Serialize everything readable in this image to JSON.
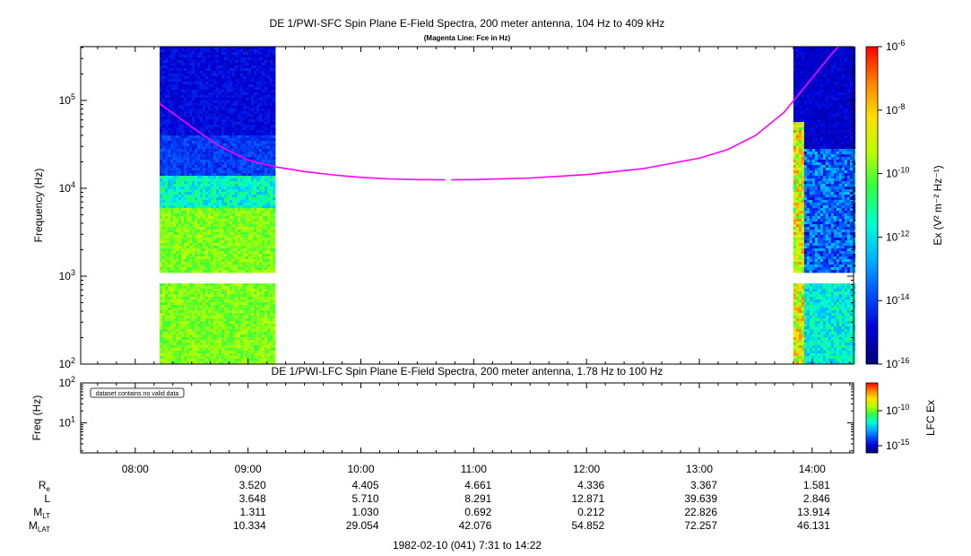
{
  "colors": {
    "fce_line": "#ff00ff",
    "frame": "#000000",
    "background": "#ffffff",
    "colorbar_stops": [
      "#00007a",
      "#0000d8",
      "#0050ff",
      "#00b4ff",
      "#00ffd0",
      "#2cff40",
      "#b8ff00",
      "#ffe000",
      "#ff8000",
      "#ff0000"
    ]
  },
  "top_panel": {
    "title": "DE 1/PWI-SFC  Spin Plane E-Field Spectra, 200 meter antenna, 104 Hz to 409 kHz",
    "subtitle": "(Magenta Line: Fce in Hz)",
    "ylabel": "Frequency (Hz)",
    "y_ticks": [
      {
        "base": "10",
        "exp": "5",
        "value": 100000
      },
      {
        "base": "10",
        "exp": "4",
        "value": 10000
      },
      {
        "base": "10",
        "exp": "3",
        "value": 1000
      },
      {
        "base": "10",
        "exp": "2",
        "value": 100
      }
    ],
    "colorbar_label": "Ex (V² m⁻² Hz⁻¹)",
    "colorbar_ticks": [
      {
        "base": "10",
        "exp": "-6"
      },
      {
        "base": "10",
        "exp": "-8"
      },
      {
        "base": "10",
        "exp": "-10"
      },
      {
        "base": "10",
        "exp": "-12"
      },
      {
        "base": "10",
        "exp": "-14"
      },
      {
        "base": "10",
        "exp": "-16"
      }
    ]
  },
  "bottom_panel": {
    "title": "DE 1/PWI-LFC  Spin Plane E-Field Spectra, 200 meter antenna, 1.78 Hz to 100 Hz",
    "ylabel": "Freq (Hz)",
    "y_ticks": [
      {
        "base": "10",
        "exp": "2"
      },
      {
        "base": "10",
        "exp": "1"
      }
    ],
    "notice": "dataset contains no valid data",
    "colorbar_label": "LFC Ex",
    "colorbar_ticks": [
      {
        "base": "10",
        "exp": "-10"
      },
      {
        "base": "10",
        "exp": "-15"
      }
    ]
  },
  "time_axis": {
    "ticks": [
      "08:00",
      "09:00",
      "10:00",
      "11:00",
      "12:00",
      "13:00",
      "14:00"
    ],
    "footer": "1982-02-10 (041) 7:31 to 14:22"
  },
  "ephemeris": {
    "rows": [
      {
        "label": "R",
        "sub": "e",
        "values": [
          "",
          "3.520",
          "4.405",
          "4.661",
          "4.336",
          "3.367",
          "1.581"
        ]
      },
      {
        "label": "L",
        "sub": "",
        "values": [
          "",
          "3.648",
          "5.710",
          "8.291",
          "12.871",
          "39.639",
          "2.846"
        ]
      },
      {
        "label": "M",
        "sub": "LT",
        "values": [
          "",
          "1.311",
          "1.030",
          "0.692",
          "0.212",
          "22.826",
          "13.914"
        ]
      },
      {
        "label": "M",
        "sub": "LAT",
        "values": [
          "",
          "10.334",
          "29.054",
          "42.076",
          "54.852",
          "72.257",
          "46.131"
        ]
      }
    ]
  },
  "chart_data": {
    "type": "heatmap",
    "x_unit": "UT",
    "xlim": [
      "07:31",
      "14:22"
    ],
    "ylim": [
      100,
      409000
    ],
    "y_scale": "log",
    "color_scale": "log",
    "clim": [
      1e-16,
      1e-06
    ],
    "data_intervals": [
      {
        "start": "08:13",
        "end": "09:14"
      },
      {
        "start": "13:50",
        "end": "14:22"
      }
    ],
    "band_gap_hz": [
      880,
      1050
    ],
    "fce_series": {
      "segments": [
        [
          [
            "08:13",
            92000
          ],
          [
            "08:30",
            50000
          ],
          [
            "08:45",
            30000
          ],
          [
            "09:00",
            21000
          ],
          [
            "09:15",
            17500
          ],
          [
            "09:30",
            15500
          ],
          [
            "09:45",
            14200
          ],
          [
            "10:00",
            13300
          ],
          [
            "10:15",
            12800
          ],
          [
            "10:30",
            12550
          ],
          [
            "10:45",
            12500
          ]
        ],
        [
          [
            "10:48",
            12500
          ],
          [
            "11:00",
            12550
          ],
          [
            "11:30",
            13100
          ],
          [
            "12:00",
            14300
          ],
          [
            "12:30",
            16700
          ],
          [
            "13:00",
            22000
          ],
          [
            "13:15",
            27500
          ],
          [
            "13:30",
            40000
          ],
          [
            "13:45",
            73000
          ],
          [
            "14:00",
            180000
          ],
          [
            "14:10",
            330000
          ],
          [
            "14:14",
            409000
          ]
        ]
      ]
    }
  }
}
